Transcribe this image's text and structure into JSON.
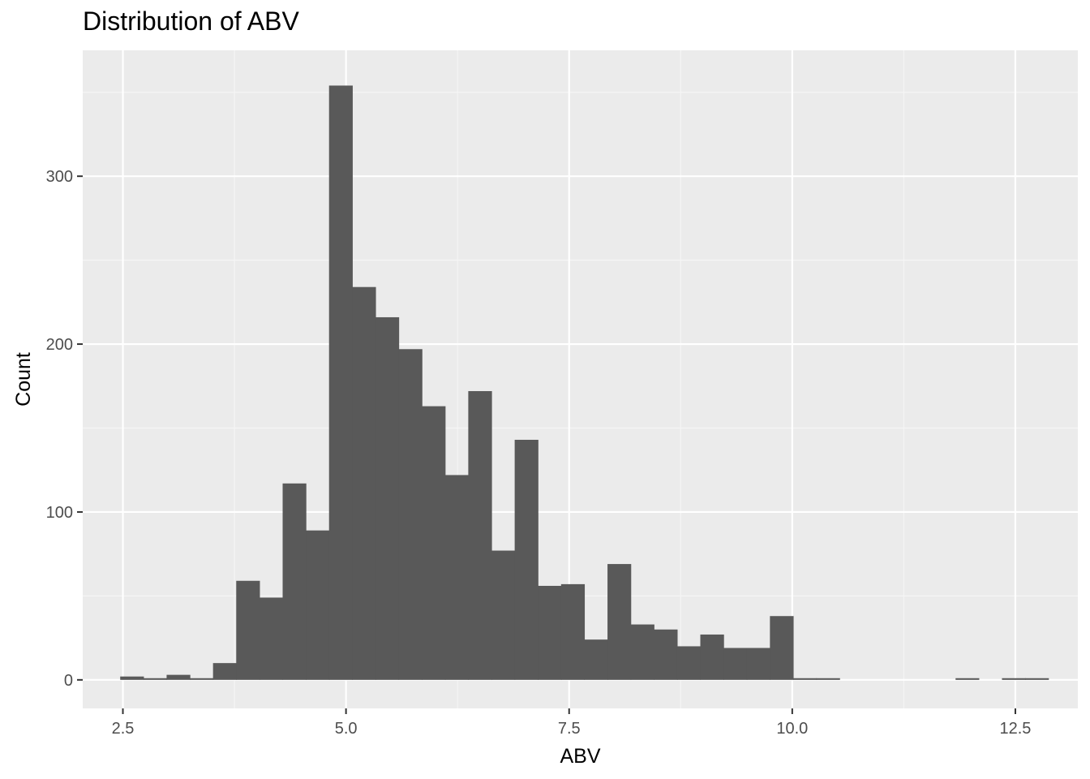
{
  "chart_data": {
    "type": "bar",
    "subtype": "histogram",
    "title": "Distribution of ABV",
    "xlabel": "ABV",
    "ylabel": "Count",
    "xlim": [
      2.05,
      13.2
    ],
    "ylim": [
      -17,
      375
    ],
    "x_ticks": [
      2.5,
      5.0,
      7.5,
      10.0,
      12.5
    ],
    "x_tick_labels": [
      "2.5",
      "5.0",
      "7.5",
      "10.0",
      "12.5"
    ],
    "y_ticks": [
      0,
      100,
      200,
      300
    ],
    "y_tick_labels": [
      "0",
      "100",
      "200",
      "300"
    ],
    "grid": true,
    "bin_width": 0.26,
    "bin_starts": [
      2.47,
      2.73,
      2.99,
      3.25,
      3.51,
      3.77,
      4.03,
      4.29,
      4.55,
      4.81,
      5.07,
      5.33,
      5.59,
      5.85,
      6.11,
      6.37,
      6.63,
      6.89,
      7.15,
      7.41,
      7.67,
      7.93,
      8.19,
      8.45,
      8.71,
      8.97,
      9.23,
      9.49,
      9.75,
      10.01,
      10.27,
      10.53,
      10.79,
      11.05,
      11.31,
      11.57,
      11.83,
      12.09,
      12.35,
      12.61
    ],
    "values": [
      2,
      1,
      3,
      1,
      10,
      59,
      49,
      117,
      89,
      354,
      234,
      216,
      197,
      163,
      122,
      172,
      77,
      143,
      56,
      57,
      24,
      69,
      33,
      30,
      20,
      27,
      19,
      19,
      38,
      1,
      1,
      0,
      0,
      0,
      0,
      0,
      1,
      0,
      1,
      1
    ],
    "colors": {
      "bar": "#595959",
      "panel": "#ebebeb",
      "grid_major": "#ffffff",
      "grid_minor": "#f5f5f5"
    }
  }
}
